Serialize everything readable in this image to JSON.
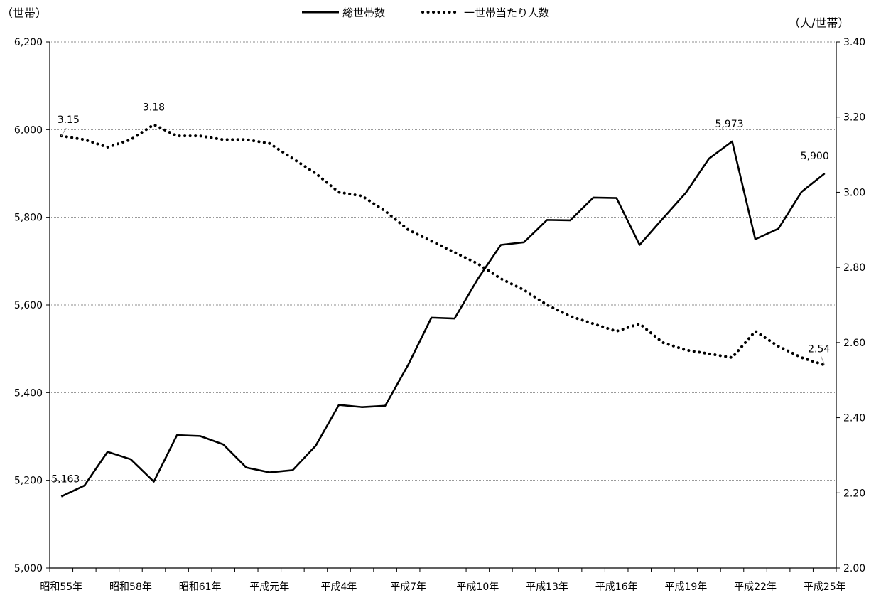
{
  "chart_data": {
    "type": "line",
    "left_unit": "（世帯）",
    "right_unit": "（人/世帯）",
    "left_ylim": [
      5000,
      6200
    ],
    "left_ticks": [
      "5,000",
      "5,200",
      "5,400",
      "5,600",
      "5,800",
      "6,000",
      "6,200"
    ],
    "right_ylim": [
      2.0,
      3.4
    ],
    "right_ticks": [
      "2.00",
      "2.20",
      "2.40",
      "2.60",
      "2.80",
      "3.00",
      "3.20",
      "3.40"
    ],
    "x_labels": [
      "昭和55年",
      "昭和58年",
      "昭和61年",
      "平成元年",
      "平成4年",
      "平成7年",
      "平成10年",
      "平成13年",
      "平成16年",
      "平成19年",
      "平成22年",
      "平成25年"
    ],
    "grid": "horizontal",
    "legend_position": "top-center",
    "series": [
      {
        "name": "総世帯数",
        "axis": "left",
        "style": "solid",
        "values": [
          5163,
          5188,
          5265,
          5248,
          5197,
          5303,
          5301,
          5282,
          5229,
          5218,
          5223,
          5279,
          5372,
          5367,
          5370,
          5464,
          5571,
          5569,
          5659,
          5737,
          5743,
          5794,
          5793,
          5845,
          5844,
          5737,
          5797,
          5856,
          5934,
          5973,
          5750,
          5774,
          5858,
          5900
        ]
      },
      {
        "name": "一世帯当たり人数",
        "axis": "right",
        "style": "dotted",
        "values": [
          3.15,
          3.14,
          3.12,
          3.14,
          3.18,
          3.15,
          3.15,
          3.14,
          3.14,
          3.13,
          3.09,
          3.05,
          3.0,
          2.99,
          2.95,
          2.9,
          2.87,
          2.84,
          2.81,
          2.77,
          2.74,
          2.7,
          2.67,
          2.65,
          2.63,
          2.65,
          2.6,
          2.58,
          2.57,
          2.56,
          2.63,
          2.59,
          2.56,
          2.54
        ]
      }
    ],
    "annotations": [
      {
        "series": 0,
        "index": 0,
        "text": "5,163"
      },
      {
        "series": 0,
        "index": 29,
        "text": "5,973"
      },
      {
        "series": 0,
        "index": 33,
        "text": "5,900"
      },
      {
        "series": 1,
        "index": 0,
        "text": "3.15"
      },
      {
        "series": 1,
        "index": 4,
        "text": "3.18"
      },
      {
        "series": 1,
        "index": 33,
        "text": "2.54"
      }
    ]
  }
}
